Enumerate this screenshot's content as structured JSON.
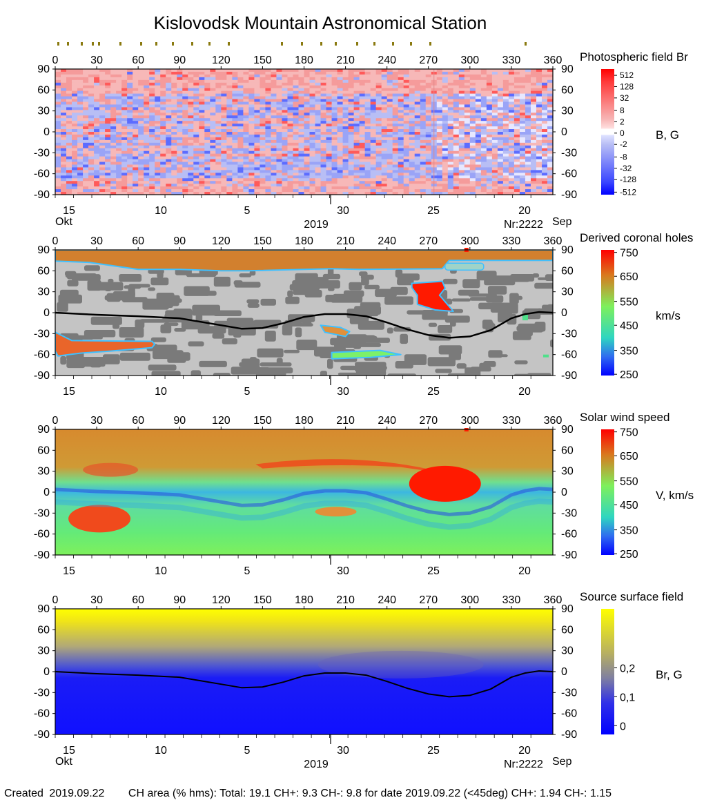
{
  "title": "Kislovodsk Mountain Astronomical Station",
  "colors": {
    "br_pos": "#ff2020",
    "br_neg": "#2030ff",
    "ch_gray_dark": "#7a7a7a",
    "ch_gray_light": "#c4c4c4",
    "ch_north_cap": "#d2802e",
    "ch_red": "#ff1a00",
    "ss_yellow": "#ffff00",
    "ss_blue": "#1010ff"
  },
  "chart_data": [
    {
      "type": "heatmap",
      "name": "photospheric",
      "panel_title": "Photospheric field Br",
      "unit_label": "B, G",
      "colorbar_ticks": [
        "512",
        "128",
        "32",
        "8",
        "2",
        "0",
        "-2",
        "-8",
        "-32",
        "-128",
        "-512"
      ],
      "x_ticks": [
        "0",
        "30",
        "60",
        "90",
        "120",
        "150",
        "180",
        "210",
        "240",
        "270",
        "300",
        "330",
        "360"
      ],
      "y_ticks": [
        "90",
        "60",
        "30",
        "0",
        "-30",
        "-60",
        "-90"
      ],
      "xlim": [
        0,
        360
      ],
      "ylim": [
        -90,
        90
      ],
      "date_ticks": [
        "15",
        "10",
        "5",
        "30",
        "25",
        "20"
      ],
      "date_month_left": "Okt",
      "date_year": "2019",
      "rotation_label": "Nr:2222",
      "date_month_right": "Sep"
    },
    {
      "type": "heatmap",
      "name": "coronal-holes",
      "panel_title": "Derived coronal holes",
      "unit_label": "km/s",
      "colorbar_ticks": [
        "750",
        "650",
        "550",
        "450",
        "350",
        "250"
      ],
      "x_ticks": [
        "0",
        "30",
        "60",
        "90",
        "120",
        "150",
        "180",
        "210",
        "240",
        "270",
        "300",
        "330",
        "360"
      ],
      "y_ticks": [
        "90",
        "60",
        "30",
        "0",
        "-30",
        "-60",
        "-90"
      ],
      "xlim": [
        0,
        360
      ],
      "ylim": [
        -90,
        90
      ],
      "date_ticks": [
        "15",
        "10",
        "5",
        "30",
        "25",
        "20"
      ],
      "neutral_line": [
        [
          0,
          0
        ],
        [
          30,
          -3
        ],
        [
          60,
          -5
        ],
        [
          90,
          -8
        ],
        [
          120,
          -18
        ],
        [
          135,
          -23
        ],
        [
          150,
          -22
        ],
        [
          165,
          -15
        ],
        [
          180,
          -6
        ],
        [
          195,
          -2
        ],
        [
          210,
          -2
        ],
        [
          225,
          -5
        ],
        [
          240,
          -14
        ],
        [
          255,
          -24
        ],
        [
          270,
          -32
        ],
        [
          285,
          -36
        ],
        [
          300,
          -34
        ],
        [
          315,
          -25
        ],
        [
          330,
          -8
        ],
        [
          340,
          -2
        ],
        [
          350,
          1
        ],
        [
          360,
          0
        ]
      ],
      "holes": [
        {
          "label": "north polar hole",
          "polygon": [
            [
              0,
              90
            ],
            [
              360,
              90
            ],
            [
              360,
              75
            ],
            [
              285,
              75
            ],
            [
              280,
              63
            ],
            [
              220,
              62
            ],
            [
              200,
              63
            ],
            [
              140,
              60
            ],
            [
              120,
              60
            ],
            [
              90,
              62
            ],
            [
              60,
              62
            ],
            [
              25,
              72
            ],
            [
              0,
              74
            ]
          ]
        },
        {
          "label": "positive mid-latitude hole",
          "polygon": [
            [
              258,
              42
            ],
            [
              280,
              45
            ],
            [
              282,
              35
            ],
            [
              278,
              25
            ],
            [
              288,
              2
            ],
            [
              275,
              4
            ],
            [
              262,
              12
            ],
            [
              262,
              25
            ],
            [
              258,
              36
            ]
          ]
        },
        {
          "label": "southern hole",
          "polygon": [
            [
              0,
              -28
            ],
            [
              12,
              -40
            ],
            [
              70,
              -41
            ],
            [
              72,
              -45
            ],
            [
              70,
              -50
            ],
            [
              40,
              -55
            ],
            [
              18,
              -58
            ],
            [
              2,
              -62
            ],
            [
              0,
              -55
            ]
          ]
        },
        {
          "label": "small southern hole",
          "polygon": [
            [
              192,
              -18
            ],
            [
              206,
              -21
            ],
            [
              213,
              -27
            ],
            [
              210,
              -34
            ],
            [
              195,
              -28
            ]
          ]
        },
        {
          "label": "south equatorial strip",
          "polygon": [
            [
              200,
              -57
            ],
            [
              235,
              -54
            ],
            [
              250,
              -60
            ],
            [
              228,
              -64
            ],
            [
              200,
              -66
            ]
          ]
        }
      ]
    },
    {
      "type": "heatmap",
      "name": "solar-wind",
      "panel_title": "Solar wind speed",
      "unit_label": "V, km/s",
      "colorbar_ticks": [
        "750",
        "650",
        "550",
        "450",
        "350",
        "250"
      ],
      "x_ticks": [
        "0",
        "30",
        "60",
        "90",
        "120",
        "150",
        "180",
        "210",
        "240",
        "270",
        "300",
        "330",
        "360"
      ],
      "y_ticks": [
        "90",
        "60",
        "30",
        "0",
        "-30",
        "-60",
        "-90"
      ],
      "xlim": [
        0,
        360
      ],
      "ylim": [
        -90,
        90
      ],
      "date_ticks": [
        "15",
        "10",
        "5",
        "30",
        "25",
        "20"
      ]
    },
    {
      "type": "heatmap",
      "name": "source-surface",
      "panel_title": "Source surface field",
      "unit_label": "Br, G",
      "colorbar_ticks": [
        "0,2",
        "0,1",
        "0"
      ],
      "x_ticks": [
        "0",
        "30",
        "60",
        "90",
        "120",
        "150",
        "180",
        "210",
        "240",
        "270",
        "300",
        "330",
        "360"
      ],
      "y_ticks": [
        "90",
        "60",
        "30",
        "0",
        "-30",
        "-60",
        "-90"
      ],
      "xlim": [
        0,
        360
      ],
      "ylim": [
        -90,
        90
      ],
      "date_ticks": [
        "15",
        "10",
        "5",
        "30",
        "25",
        "20"
      ],
      "date_month_left": "Okt",
      "date_year": "2019",
      "rotation_label": "Nr:2222",
      "date_month_right": "Sep",
      "neutral_line": [
        [
          0,
          0
        ],
        [
          30,
          -3
        ],
        [
          60,
          -5
        ],
        [
          90,
          -8
        ],
        [
          120,
          -18
        ],
        [
          135,
          -23
        ],
        [
          150,
          -22
        ],
        [
          165,
          -15
        ],
        [
          180,
          -6
        ],
        [
          195,
          -2
        ],
        [
          210,
          -2
        ],
        [
          225,
          -5
        ],
        [
          240,
          -14
        ],
        [
          255,
          -24
        ],
        [
          270,
          -32
        ],
        [
          285,
          -36
        ],
        [
          300,
          -34
        ],
        [
          315,
          -25
        ],
        [
          330,
          -8
        ],
        [
          340,
          -2
        ],
        [
          350,
          1
        ],
        [
          360,
          0
        ]
      ]
    }
  ],
  "footer": {
    "created_label": "Created",
    "created_date": "2019.09.22",
    "ch_text": "CH area (% hms): Total: 19.1 CH+: 9.3   CH-: 9.8 for date 2019.09.22 (<45deg) CH+: 1.94    CH-: 1.15"
  }
}
